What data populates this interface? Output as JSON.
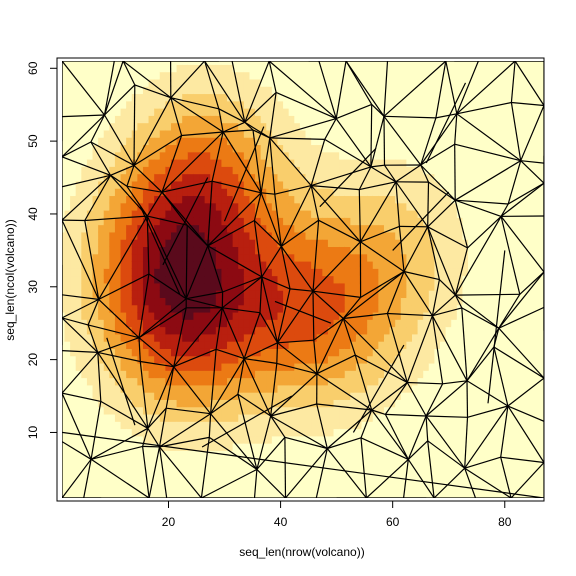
{
  "chart_data": {
    "type": "heatmap",
    "title": "",
    "xlabel": "seq_len(nrow(volcano))",
    "ylabel": "seq_len(ncol(volcano))",
    "xlim": [
      1,
      87
    ],
    "ylim": [
      1,
      61
    ],
    "x_ticks": [
      20,
      40,
      60,
      80
    ],
    "y_ticks": [
      10,
      20,
      30,
      40,
      50,
      60
    ],
    "x_tick_labels": [
      "20",
      "40",
      "60",
      "80"
    ],
    "y_tick_labels": [
      "10",
      "20",
      "30",
      "40",
      "50",
      "60"
    ],
    "grid": false,
    "legend": "none",
    "colormap": [
      "#FFFFC8",
      "#FDE9A2",
      "#F9CE6C",
      "#F3A636",
      "#EC7A14",
      "#DC4A0E",
      "#B81F0F",
      "#8C0A12",
      "#5A0A1C"
    ],
    "overlay": "triangulation mesh (black edges)",
    "field_peaks": [
      {
        "x": 19,
        "y": 33,
        "amplitude": 1.0
      },
      {
        "x": 27,
        "y": 45,
        "amplitude": 0.85
      },
      {
        "x": 23,
        "y": 23,
        "amplitude": 0.75
      },
      {
        "x": 39,
        "y": 28,
        "amplitude": 0.6
      },
      {
        "x": 50,
        "y": 25,
        "amplitude": 0.55
      },
      {
        "x": 60,
        "y": 35,
        "amplitude": 0.45
      }
    ],
    "mesh_vertices_sample": [
      [
        1,
        1
      ],
      [
        8,
        1
      ],
      [
        20,
        1
      ],
      [
        35,
        1
      ],
      [
        50,
        1
      ],
      [
        66,
        1
      ],
      [
        87,
        1
      ],
      [
        1,
        10
      ],
      [
        1,
        22
      ],
      [
        1,
        33
      ],
      [
        1,
        50
      ],
      [
        1,
        61
      ],
      [
        13,
        61
      ],
      [
        29,
        61
      ],
      [
        45,
        61
      ],
      [
        69,
        61
      ],
      [
        71,
        61
      ],
      [
        87,
        61
      ],
      [
        87,
        24
      ],
      [
        87,
        48
      ],
      [
        73,
        58
      ],
      [
        66,
        47
      ],
      [
        57,
        49
      ],
      [
        47,
        41
      ],
      [
        37,
        52
      ],
      [
        30,
        39
      ],
      [
        22,
        29
      ],
      [
        15,
        41
      ],
      [
        9,
        23
      ],
      [
        14,
        11
      ],
      [
        26,
        8
      ],
      [
        42,
        15
      ],
      [
        53,
        10
      ],
      [
        62,
        22
      ],
      [
        77,
        14
      ],
      [
        80,
        35
      ],
      [
        70,
        43
      ],
      [
        60,
        35
      ],
      [
        49,
        25
      ],
      [
        39,
        28
      ],
      [
        27,
        45
      ],
      [
        19,
        33
      ]
    ]
  }
}
